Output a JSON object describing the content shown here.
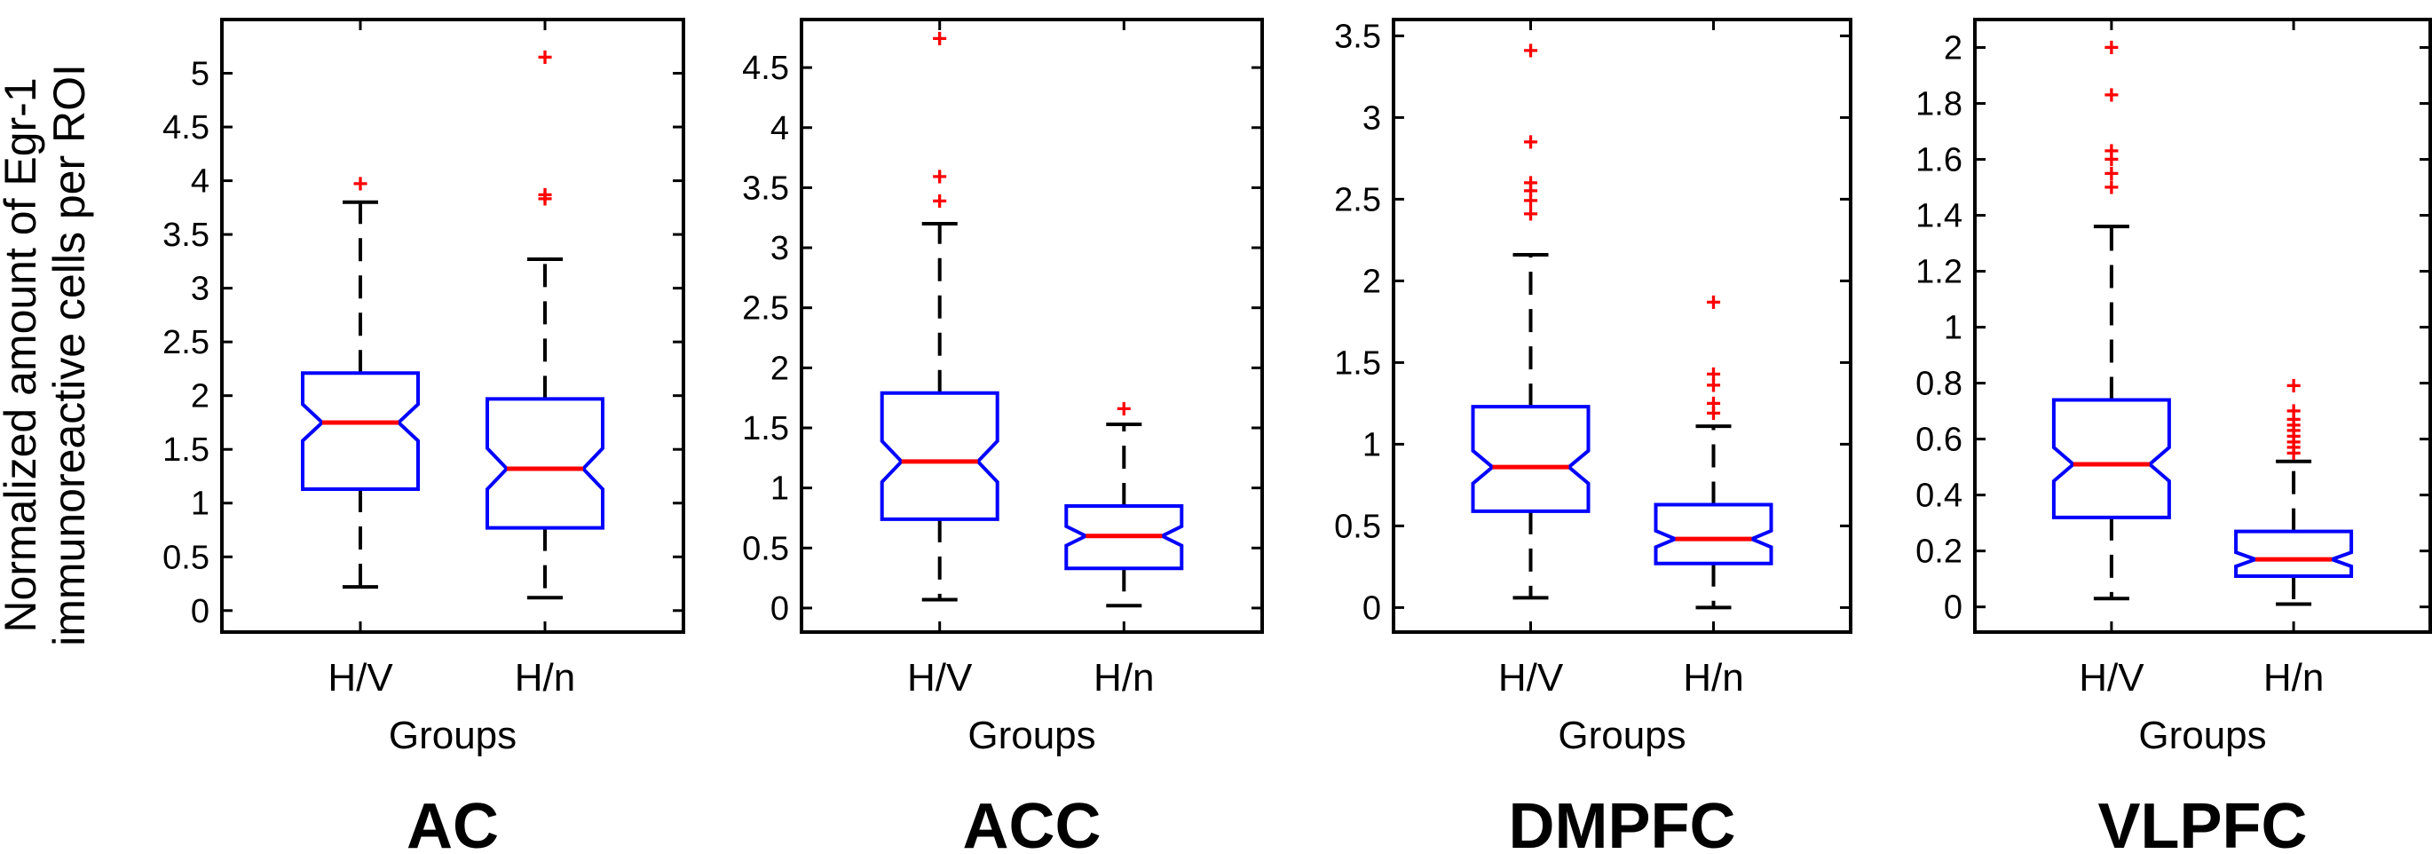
{
  "figure": {
    "ylabel_line1": "Normalized amount of Egr-1",
    "ylabel_line2": "immunoreactive cells per ROI"
  },
  "style": {
    "box_color": "#0000ff",
    "median_color": "#ff0000",
    "outlier_color": "#ff0000",
    "axis_color": "#000000"
  },
  "chart_data": [
    {
      "type": "boxplot",
      "title": "AC",
      "xlabel": "Groups",
      "categories": [
        "H/V",
        "H/n"
      ],
      "ylim": [
        -0.2,
        5.5
      ],
      "yticks": [
        0,
        0.5,
        1,
        1.5,
        2,
        2.5,
        3,
        3.5,
        4,
        4.5,
        5
      ],
      "ytick_labels": [
        "0",
        "0.5",
        "1",
        "1.5",
        "2",
        "2.5",
        "3",
        "3.5",
        "4",
        "4.5",
        "5"
      ],
      "boxes": [
        {
          "q1": 1.13,
          "median": 1.75,
          "q3": 2.21,
          "notch_low": 1.58,
          "notch_high": 1.92,
          "whisker_low": 0.22,
          "whisker_high": 3.8,
          "outliers": [
            3.97
          ]
        },
        {
          "q1": 0.77,
          "median": 1.32,
          "q3": 1.97,
          "notch_low": 1.13,
          "notch_high": 1.51,
          "whisker_low": 0.12,
          "whisker_high": 3.27,
          "outliers": [
            3.83,
            3.87,
            5.15
          ]
        }
      ]
    },
    {
      "type": "boxplot",
      "title": "ACC",
      "xlabel": "Groups",
      "categories": [
        "H/V",
        "H/n"
      ],
      "ylim": [
        -0.2,
        4.9
      ],
      "yticks": [
        0,
        0.5,
        1,
        1.5,
        2,
        2.5,
        3,
        3.5,
        4,
        4.5
      ],
      "ytick_labels": [
        "0",
        "0.5",
        "1",
        "1.5",
        "2",
        "2.5",
        "3",
        "3.5",
        "4",
        "4.5"
      ],
      "boxes": [
        {
          "q1": 0.74,
          "median": 1.22,
          "q3": 1.79,
          "notch_low": 1.05,
          "notch_high": 1.39,
          "whisker_low": 0.07,
          "whisker_high": 3.2,
          "outliers": [
            3.39,
            3.59,
            4.74
          ]
        },
        {
          "q1": 0.33,
          "median": 0.6,
          "q3": 0.85,
          "notch_low": 0.52,
          "notch_high": 0.68,
          "whisker_low": 0.02,
          "whisker_high": 1.53,
          "outliers": [
            1.66
          ]
        }
      ]
    },
    {
      "type": "boxplot",
      "title": "DMPFC",
      "xlabel": "Groups",
      "categories": [
        "H/V",
        "H/n"
      ],
      "ylim": [
        -0.15,
        3.6
      ],
      "yticks": [
        0,
        0.5,
        1,
        1.5,
        2,
        2.5,
        3,
        3.5
      ],
      "ytick_labels": [
        "0",
        "0.5",
        "1",
        "1.5",
        "2",
        "2.5",
        "3",
        "3.5"
      ],
      "boxes": [
        {
          "q1": 0.59,
          "median": 0.86,
          "q3": 1.23,
          "notch_low": 0.76,
          "notch_high": 0.96,
          "whisker_low": 0.06,
          "whisker_high": 2.16,
          "outliers": [
            2.41,
            2.49,
            2.55,
            2.6,
            2.85,
            3.41
          ]
        },
        {
          "q1": 0.27,
          "median": 0.42,
          "q3": 0.63,
          "notch_low": 0.37,
          "notch_high": 0.47,
          "whisker_low": 0.0,
          "whisker_high": 1.11,
          "outliers": [
            1.19,
            1.25,
            1.36,
            1.43,
            1.87
          ]
        }
      ]
    },
    {
      "type": "boxplot",
      "title": "VLPFC",
      "xlabel": "Groups",
      "categories": [
        "H/V",
        "H/n"
      ],
      "ylim": [
        -0.09,
        2.1
      ],
      "yticks": [
        0,
        0.2,
        0.4,
        0.6,
        0.8,
        1,
        1.2,
        1.4,
        1.6,
        1.8,
        2
      ],
      "ytick_labels": [
        "0",
        "0.2",
        "0.4",
        "0.6",
        "0.8",
        "1",
        "1.2",
        "1.4",
        "1.6",
        "1.8",
        "2"
      ],
      "boxes": [
        {
          "q1": 0.32,
          "median": 0.51,
          "q3": 0.74,
          "notch_low": 0.45,
          "notch_high": 0.57,
          "whisker_low": 0.03,
          "whisker_high": 1.36,
          "outliers": [
            1.5,
            1.55,
            1.6,
            1.63,
            1.83,
            2.0
          ]
        },
        {
          "q1": 0.11,
          "median": 0.17,
          "q3": 0.27,
          "notch_low": 0.145,
          "notch_high": 0.195,
          "whisker_low": 0.01,
          "whisker_high": 0.52,
          "outliers": [
            0.55,
            0.57,
            0.59,
            0.61,
            0.63,
            0.65,
            0.67,
            0.7,
            0.79
          ]
        }
      ]
    }
  ]
}
